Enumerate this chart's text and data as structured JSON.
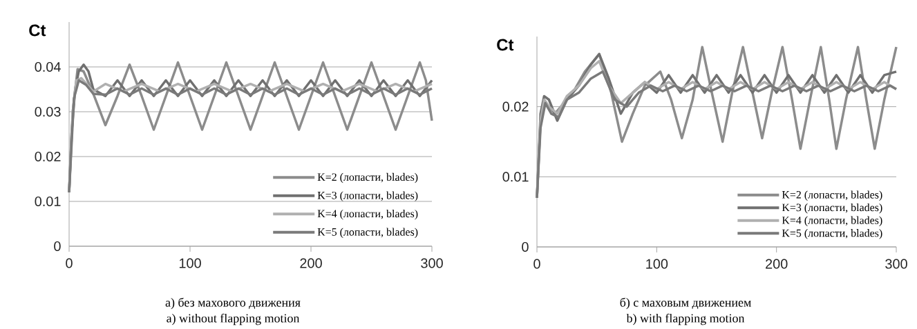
{
  "chart_data": [
    {
      "type": "line",
      "ylabel": "Ct",
      "xlim": [
        0,
        300
      ],
      "ylim": [
        0,
        0.05
      ],
      "xticks": [
        0,
        100,
        200,
        300
      ],
      "yticks": [
        0,
        0.01,
        0.02,
        0.03,
        0.04
      ],
      "grid": "y",
      "legend": "bottom right",
      "line_style": "solid",
      "annotations": [
        "а) без махового движения",
        "a) without flapping motion"
      ],
      "series": [
        {
          "name": "K=2 (лопасти, blades)",
          "color": "#8c8c8c",
          "x": [
            0,
            3,
            7,
            12,
            20,
            30,
            40,
            50,
            60,
            70,
            80,
            90,
            100,
            110,
            120,
            130,
            140,
            150,
            160,
            170,
            180,
            190,
            200,
            210,
            220,
            230,
            240,
            250,
            260,
            270,
            280,
            290,
            295,
            300
          ],
          "values": [
            0.012,
            0.03,
            0.0395,
            0.039,
            0.034,
            0.027,
            0.0335,
            0.0405,
            0.0335,
            0.026,
            0.0335,
            0.041,
            0.0335,
            0.026,
            0.0335,
            0.041,
            0.0335,
            0.026,
            0.0335,
            0.041,
            0.0335,
            0.026,
            0.0335,
            0.041,
            0.0335,
            0.026,
            0.0335,
            0.041,
            0.0335,
            0.026,
            0.0335,
            0.041,
            0.037,
            0.028
          ]
        },
        {
          "name": "K=3 (лопасти, blades)",
          "color": "#707070",
          "x": [
            0,
            2,
            5,
            8,
            12,
            16,
            20,
            30,
            40,
            50,
            60,
            70,
            80,
            90,
            100,
            110,
            120,
            130,
            140,
            150,
            160,
            170,
            180,
            190,
            200,
            210,
            220,
            230,
            240,
            250,
            260,
            270,
            280,
            290,
            300
          ],
          "values": [
            0.012,
            0.025,
            0.035,
            0.039,
            0.0405,
            0.039,
            0.035,
            0.0335,
            0.037,
            0.0335,
            0.037,
            0.0335,
            0.037,
            0.0335,
            0.037,
            0.0335,
            0.037,
            0.0335,
            0.037,
            0.0335,
            0.037,
            0.0335,
            0.037,
            0.0335,
            0.037,
            0.0335,
            0.037,
            0.0335,
            0.037,
            0.0335,
            0.037,
            0.0335,
            0.037,
            0.0335,
            0.037
          ]
        },
        {
          "name": "K=4 (лопасти, blades)",
          "color": "#b0b0b0",
          "x": [
            0,
            3,
            6,
            10,
            15,
            20,
            30,
            45,
            60,
            75,
            90,
            105,
            120,
            135,
            150,
            165,
            180,
            195,
            210,
            225,
            240,
            255,
            270,
            285,
            300
          ],
          "values": [
            0.012,
            0.03,
            0.037,
            0.0375,
            0.036,
            0.0345,
            0.0362,
            0.0345,
            0.0362,
            0.0345,
            0.0362,
            0.0345,
            0.0362,
            0.0345,
            0.0362,
            0.0345,
            0.0362,
            0.0345,
            0.0362,
            0.0345,
            0.0362,
            0.0345,
            0.0362,
            0.0345,
            0.0362
          ]
        },
        {
          "name": "K=5 (лопасти, blades)",
          "color": "#7a7a7a",
          "x": [
            0,
            4,
            8,
            14,
            20,
            30,
            40,
            50,
            60,
            70,
            80,
            90,
            100,
            110,
            120,
            130,
            140,
            150,
            160,
            170,
            180,
            190,
            200,
            210,
            220,
            230,
            240,
            250,
            260,
            270,
            280,
            290,
            300
          ],
          "values": [
            0.012,
            0.033,
            0.037,
            0.036,
            0.034,
            0.0338,
            0.0352,
            0.0338,
            0.0352,
            0.0338,
            0.0352,
            0.0338,
            0.0352,
            0.0338,
            0.0352,
            0.0338,
            0.0352,
            0.0338,
            0.0352,
            0.0338,
            0.0352,
            0.0338,
            0.0352,
            0.0338,
            0.0352,
            0.0338,
            0.0352,
            0.0338,
            0.0352,
            0.0338,
            0.0352,
            0.0338,
            0.0352
          ]
        }
      ]
    },
    {
      "type": "line",
      "ylabel": "Ct",
      "xlim": [
        0,
        300
      ],
      "ylim": [
        0,
        0.03
      ],
      "xticks": [
        0,
        100,
        200,
        300
      ],
      "yticks": [
        0,
        0.01,
        0.02
      ],
      "grid": "y",
      "legend": "bottom right",
      "line_style": "solid",
      "annotations": [
        "б) с маховым движением",
        "b) with flapping motion"
      ],
      "series": [
        {
          "name": "K=2 (лопасти, blades)",
          "color": "#8c8c8c",
          "x": [
            0,
            3,
            6,
            10,
            15,
            20,
            30,
            40,
            52,
            62,
            71,
            80,
            90,
            103,
            112,
            121,
            130,
            138,
            146,
            155,
            163,
            172,
            180,
            188,
            196,
            205,
            213,
            220,
            228,
            237,
            244,
            250,
            258,
            268,
            275,
            282,
            290,
            300
          ],
          "values": [
            0.007,
            0.018,
            0.021,
            0.02,
            0.019,
            0.02,
            0.022,
            0.025,
            0.0275,
            0.022,
            0.015,
            0.019,
            0.023,
            0.025,
            0.021,
            0.0155,
            0.021,
            0.0285,
            0.022,
            0.015,
            0.022,
            0.0285,
            0.022,
            0.0155,
            0.022,
            0.0285,
            0.021,
            0.014,
            0.021,
            0.0285,
            0.021,
            0.014,
            0.021,
            0.0285,
            0.021,
            0.014,
            0.021,
            0.0285
          ]
        },
        {
          "name": "K=3 (лопасти, blades)",
          "color": "#707070",
          "x": [
            0,
            3,
            6,
            10,
            17,
            25,
            35,
            45,
            52,
            60,
            70,
            80,
            90,
            100,
            110,
            120,
            130,
            140,
            150,
            160,
            170,
            180,
            190,
            200,
            210,
            220,
            230,
            240,
            250,
            260,
            270,
            280,
            290,
            300
          ],
          "values": [
            0.007,
            0.019,
            0.0215,
            0.021,
            0.018,
            0.021,
            0.023,
            0.026,
            0.0275,
            0.024,
            0.019,
            0.022,
            0.0235,
            0.022,
            0.0245,
            0.022,
            0.0245,
            0.022,
            0.0245,
            0.022,
            0.0245,
            0.022,
            0.0245,
            0.022,
            0.0245,
            0.022,
            0.0245,
            0.022,
            0.0245,
            0.022,
            0.0245,
            0.022,
            0.0245,
            0.025
          ]
        },
        {
          "name": "K=4 (лопасти, blades)",
          "color": "#b0b0b0",
          "x": [
            0,
            3,
            6,
            10,
            17,
            25,
            35,
            45,
            52,
            60,
            70,
            80,
            90,
            100,
            110,
            120,
            130,
            140,
            150,
            160,
            170,
            180,
            190,
            200,
            210,
            220,
            230,
            240,
            250,
            260,
            270,
            280,
            290,
            300
          ],
          "values": [
            0.007,
            0.018,
            0.021,
            0.02,
            0.019,
            0.0215,
            0.023,
            0.0255,
            0.0265,
            0.023,
            0.0205,
            0.022,
            0.0235,
            0.0225,
            0.0235,
            0.0225,
            0.0235,
            0.0225,
            0.0235,
            0.0225,
            0.0235,
            0.0225,
            0.0235,
            0.0225,
            0.0235,
            0.0225,
            0.0235,
            0.0225,
            0.0235,
            0.0225,
            0.0235,
            0.0225,
            0.0235,
            0.0225
          ]
        },
        {
          "name": "K=5 (лопасти, blades)",
          "color": "#7a7a7a",
          "x": [
            0,
            3,
            7,
            12,
            18,
            25,
            35,
            45,
            55,
            65,
            75,
            85,
            95,
            105,
            115,
            125,
            135,
            145,
            155,
            165,
            175,
            185,
            195,
            205,
            215,
            225,
            235,
            245,
            255,
            265,
            275,
            285,
            295,
            300
          ],
          "values": [
            0.007,
            0.017,
            0.0205,
            0.019,
            0.0185,
            0.021,
            0.022,
            0.024,
            0.025,
            0.021,
            0.02,
            0.022,
            0.023,
            0.0222,
            0.023,
            0.0222,
            0.023,
            0.0222,
            0.023,
            0.0222,
            0.023,
            0.0222,
            0.023,
            0.0222,
            0.023,
            0.0222,
            0.023,
            0.0222,
            0.023,
            0.0222,
            0.023,
            0.0222,
            0.023,
            0.0225
          ]
        }
      ]
    }
  ]
}
